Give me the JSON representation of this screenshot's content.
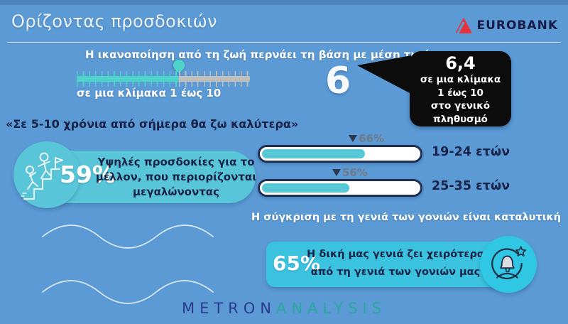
{
  "colors": {
    "background": "#5b9ad5",
    "accent_teal": "#57c8d6",
    "box_teal": "#3ac2de",
    "navy_text": "#1a2347",
    "eurobank_red": "#e5323b",
    "bubble_black": "#0c0c0c",
    "ruler_gray": "#c0beba",
    "metron_navy": "#2b3a90",
    "analysis_teal": "#2aa79d"
  },
  "header": {
    "title": "Ορίζοντας προσδοκιών",
    "brand": "EUROBANK"
  },
  "satisfaction": {
    "headline": "Η ικανοποίηση από τη ζωή περνάει τη βάση με μέση τιμή",
    "scale_label": "σε μια κλίμακα 1 έως 10",
    "youth_value": "6",
    "scale_fill_pct": 59,
    "bubble": {
      "value": "6,4",
      "line1": "σε μια κλίμακα",
      "line2": "1 έως 10",
      "line3": "στο γενικό",
      "line4": "πληθυσμό"
    }
  },
  "expectations": {
    "quote": "«Σε 5-10 χρόνια από σήμερα θα ζω καλύτερα»",
    "stat": "59%",
    "description": "Υψηλές προσδοκίες για το μέλλον, που περιορίζονται μεγαλώνοντας",
    "bars": [
      {
        "pct": 66,
        "marker_label": "66%",
        "label": "19-24 ετών"
      },
      {
        "pct": 56,
        "marker_label": "56%",
        "label": "25-35 ετών"
      }
    ]
  },
  "comparison": {
    "headline": "Η σύγκριση με τη γενιά των γονιών είναι καταλυτική",
    "stat": "65%",
    "line1": "Η δική μας γενιά ζει χειρότερα",
    "line2": "από τη γενιά των γονιών μας"
  },
  "footer": {
    "brand_left": "METRON",
    "brand_right": "ANALYSIS"
  },
  "chart_data": [
    {
      "type": "bar",
      "title": "«Σε 5-10 χρόνια από σήμερα θα ζω καλύτερα»",
      "categories": [
        "19-24 ετών",
        "25-35 ετών"
      ],
      "values": [
        66,
        56
      ],
      "unit": "%",
      "xlim": [
        0,
        100
      ],
      "orientation": "horizontal",
      "annotation": "Υψηλές προσδοκίες για το μέλλον, που περιορίζονται μεγαλώνοντας — 59%"
    },
    {
      "type": "gauge",
      "title": "Η ικανοποίηση από τη ζωή περνάει τη βάση με μέση τιμή",
      "scale_range": [
        1,
        10
      ],
      "value_shown": 6,
      "general_population_value": 6.4,
      "scale_label": "σε μια κλίμακα 1 έως 10"
    },
    {
      "type": "kpi",
      "title": "Η σύγκριση με τη γενιά των γονιών είναι καταλυτική",
      "statement": "Η δική μας γενιά ζει χειρότερα από τη γενιά των γονιών μας",
      "value": 65,
      "unit": "%"
    }
  ]
}
